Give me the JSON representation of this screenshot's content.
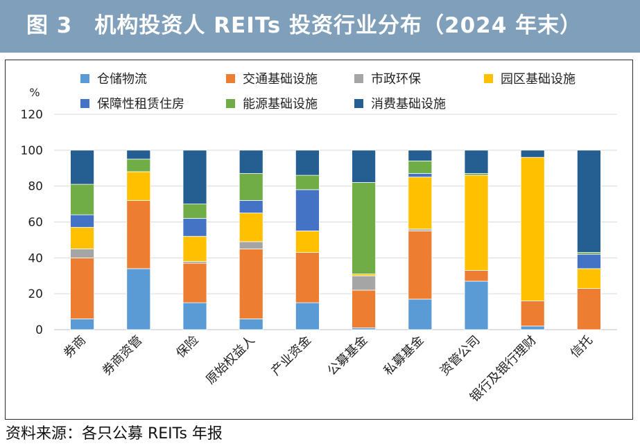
{
  "title": "图 3　机构投资人 REITs 投资行业分布（2024 年末）",
  "source": "资料来源：各只公募 REITs 年报",
  "chart_data": {
    "type": "bar",
    "stacked": true,
    "ylabel": "%",
    "ylim": [
      0,
      120
    ],
    "yticks": [
      0,
      20,
      40,
      60,
      80,
      100,
      120
    ],
    "grid": true,
    "legend_position": "top",
    "categories": [
      "券商",
      "券商资管",
      "保险",
      "原始权益人",
      "产业资金",
      "公募基金",
      "私募基金",
      "资管公司",
      "银行及银行理财",
      "信托"
    ],
    "series": [
      {
        "name": "仓储物流",
        "color": "#5b9bd5",
        "values": [
          6,
          34,
          15,
          6,
          15,
          1,
          17,
          27,
          2,
          0
        ]
      },
      {
        "name": "交通基础设施",
        "color": "#ed7d31",
        "values": [
          34,
          38,
          22,
          39,
          28,
          21,
          38,
          6,
          14,
          23
        ]
      },
      {
        "name": "市政环保",
        "color": "#a5a5a5",
        "values": [
          5,
          0,
          1,
          4,
          0,
          8,
          1,
          0,
          0,
          0
        ]
      },
      {
        "name": "园区基础设施",
        "color": "#ffc000",
        "values": [
          12,
          16,
          14,
          16,
          12,
          1,
          29,
          53,
          80,
          11
        ]
      },
      {
        "name": "保障性租赁住房",
        "color": "#4472c4",
        "values": [
          7,
          0,
          10,
          7,
          23,
          0,
          2,
          0,
          0,
          8
        ]
      },
      {
        "name": "能源基础设施",
        "color": "#70ad47",
        "values": [
          17,
          7,
          8,
          15,
          8,
          51,
          7,
          1,
          0,
          1
        ]
      },
      {
        "name": "消费基础设施",
        "color": "#255e91",
        "values": [
          19,
          5,
          30,
          13,
          14,
          18,
          6,
          13,
          4,
          57
        ]
      }
    ]
  }
}
